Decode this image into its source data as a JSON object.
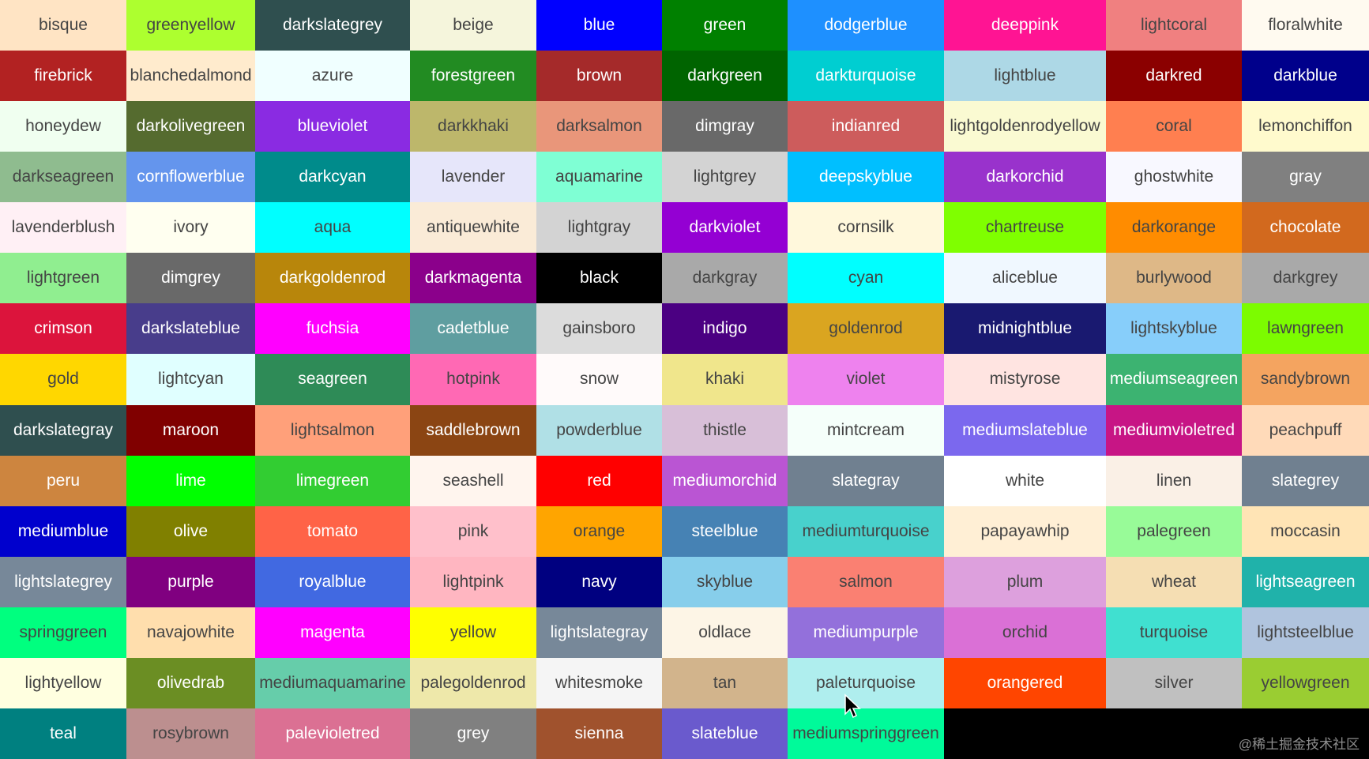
{
  "colors": [
    [
      "bisque",
      "greenyellow",
      "darkslategrey",
      "beige",
      "blue",
      "green",
      "dodgerblue",
      "deeppink",
      "lightcoral",
      "floralwhite"
    ],
    [
      "firebrick",
      "blanchedalmond",
      "azure",
      "forestgreen",
      "brown",
      "darkgreen",
      "darkturquoise",
      "lightblue",
      "darkred",
      "darkblue"
    ],
    [
      "honeydew",
      "darkolivegreen",
      "blueviolet",
      "darkkhaki",
      "darksalmon",
      "dimgray",
      "indianred",
      "lightgoldenrodyellow",
      "coral",
      "lemonchiffon"
    ],
    [
      "darkseagreen",
      "cornflowerblue",
      "darkcyan",
      "lavender",
      "aquamarine",
      "lightgrey",
      "deepskyblue",
      "darkorchid",
      "ghostwhite",
      "gray"
    ],
    [
      "lavenderblush",
      "ivory",
      "aqua",
      "antiquewhite",
      "lightgray",
      "darkviolet",
      "cornsilk",
      "chartreuse",
      "darkorange",
      "chocolate"
    ],
    [
      "lightgreen",
      "dimgrey",
      "darkgoldenrod",
      "darkmagenta",
      "black",
      "darkgray",
      "cyan",
      "aliceblue",
      "burlywood",
      "darkgrey"
    ],
    [
      "crimson",
      "darkslateblue",
      "fuchsia",
      "cadetblue",
      "gainsboro",
      "indigo",
      "goldenrod",
      "midnightblue",
      "lightskyblue",
      "lawngreen"
    ],
    [
      "gold",
      "lightcyan",
      "seagreen",
      "hotpink",
      "snow",
      "khaki",
      "violet",
      "mistyrose",
      "mediumseagreen",
      "sandybrown"
    ],
    [
      "darkslategray",
      "maroon",
      "lightsalmon",
      "saddlebrown",
      "powderblue",
      "thistle",
      "mintcream",
      "mediumslateblue",
      "mediumvioletred",
      "peachpuff"
    ],
    [
      "peru",
      "lime",
      "limegreen",
      "seashell",
      "red",
      "mediumorchid",
      "slategray",
      "white",
      "linen",
      "slategrey"
    ],
    [
      "mediumblue",
      "olive",
      "tomato",
      "pink",
      "orange",
      "steelblue",
      "mediumturquoise",
      "papayawhip",
      "palegreen",
      "moccasin"
    ],
    [
      "lightslategrey",
      "purple",
      "royalblue",
      "lightpink",
      "navy",
      "skyblue",
      "salmon",
      "plum",
      "wheat",
      "lightseagreen"
    ],
    [
      "springgreen",
      "navajowhite",
      "magenta",
      "yellow",
      "lightslategray",
      "oldlace",
      "mediumpurple",
      "orchid",
      "turquoise",
      "lightsteelblue"
    ],
    [
      "lightyellow",
      "olivedrab",
      "mediumaquamarine",
      "palegoldenrod",
      "whitesmoke",
      "tan",
      "paleturquoise",
      "orangered",
      "silver",
      "yellowgreen"
    ],
    [
      "teal",
      "rosybrown",
      "palevioletred",
      "grey",
      "sienna",
      "slateblue",
      "mediumspringgreen"
    ]
  ],
  "watermark": "@稀土掘金技术社区",
  "cursor_icon": "mouse-pointer-icon"
}
